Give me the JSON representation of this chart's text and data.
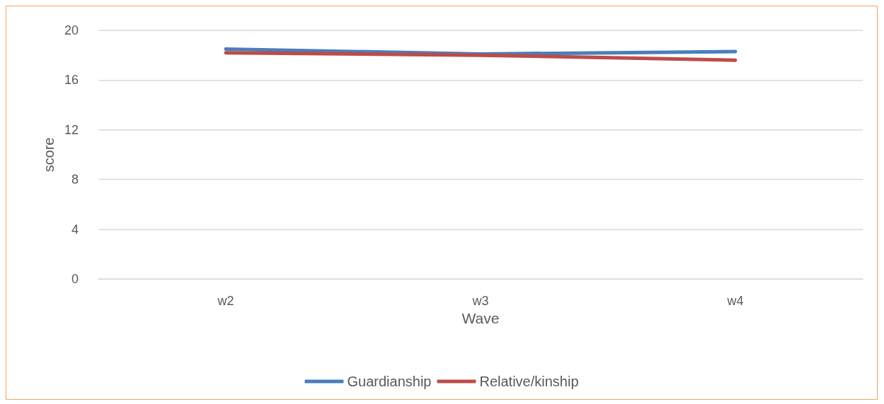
{
  "chart_data": {
    "type": "line",
    "xlabel": "Wave",
    "ylabel": "score",
    "categories": [
      "w2",
      "w3",
      "w4"
    ],
    "series": [
      {
        "name": "Guardianship",
        "color": "#4a7ebb",
        "values": [
          18.5,
          18.1,
          18.3
        ]
      },
      {
        "name": "Relative/kinship",
        "color": "#be4b48",
        "values": [
          18.2,
          18.0,
          17.6
        ]
      }
    ],
    "ylim": [
      0,
      20
    ],
    "yticks": [
      0,
      4,
      8,
      12,
      16,
      20
    ],
    "grid": "y",
    "legend": "bottom",
    "marker": "none",
    "line_style": "solid"
  }
}
